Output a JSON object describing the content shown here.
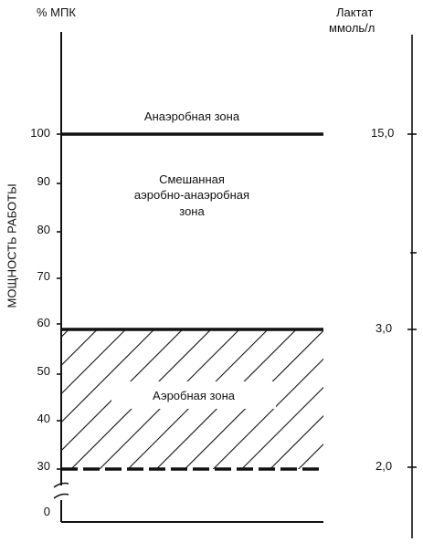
{
  "left_axis": {
    "unit": "% МПК",
    "title": "МОЩНОСТЬ РАБОТЫ",
    "ticks": [
      "100",
      "90",
      "80",
      "70",
      "60",
      "50",
      "40",
      "30",
      "0"
    ]
  },
  "right_axis": {
    "title_line1": "Лактат",
    "title_line2": "ммоль/л",
    "ticks": [
      "15,0",
      "3,0",
      "2,0"
    ]
  },
  "zones": {
    "anaerobic": "Анаэробная зона",
    "mixed_line1": "Смешанная",
    "mixed_line2": "аэробно-анаэробная",
    "mixed_line3": "зона",
    "aerobic": "Аэробная зона"
  }
}
